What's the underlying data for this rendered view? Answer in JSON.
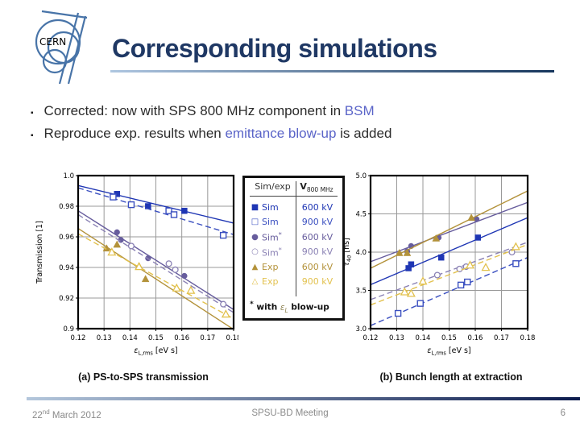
{
  "colors": {
    "accent": "#5a64c8",
    "title": "#1f3864"
  },
  "slide": {
    "title": "Corresponding simulations",
    "logo_text": "CERN",
    "bullet_glyph": "▪",
    "bullets": [
      {
        "segments": [
          {
            "t": "Corrected: now with SPS 800 MHz component in "
          },
          {
            "t": "BSM",
            "accent": true
          }
        ]
      },
      {
        "segments": [
          {
            "t": "Reproduce exp. results when "
          },
          {
            "t": "emittance blow-up",
            "accent": true
          },
          {
            "t": " is added"
          }
        ]
      }
    ],
    "captions": {
      "left": "(a) PS-to-SPS transmission",
      "right": "(b) Bunch length at extraction"
    },
    "footer": {
      "date_day": "22",
      "date_ord": "nd",
      "date_rest": " March 2012",
      "center": "SPSU-BD Meeting",
      "page": "6"
    }
  },
  "legend": {
    "header_left": "Sim/exp",
    "header_right_main": "V",
    "header_right_sub": "800 MHz",
    "rows": [
      {
        "glyph": "■",
        "label": "Sim",
        "star": false,
        "value": "600 kV",
        "color": "#1f36b4"
      },
      {
        "glyph": "□",
        "label": "Sim",
        "star": false,
        "value": "900 kV",
        "color": "#3a4fc0"
      },
      {
        "glyph": "●",
        "label": "Sim",
        "star": true,
        "value": "600 kV",
        "color": "#675d9d"
      },
      {
        "glyph": "○",
        "label": "Sim",
        "star": true,
        "value": "900 kV",
        "color": "#8a81b4"
      },
      {
        "glyph": "▲",
        "label": "Exp",
        "star": false,
        "value": "600 kV",
        "color": "#b3923a"
      },
      {
        "glyph": "△",
        "label": "Exp",
        "star": false,
        "value": "900 kV",
        "color": "#e2c14d"
      }
    ],
    "footnote": {
      "star": "*",
      "pre": " with ",
      "eps": "ε",
      "eps_sub": "L",
      "post": " blow-up"
    }
  },
  "chart_data": [
    {
      "type": "scatter",
      "title": "PS-to-SPS transmission",
      "xlabel_parts": [
        {
          "t": "ε",
          "i": true
        },
        {
          "t": "L,rms",
          "sub": true
        },
        {
          "t": " [eV s]"
        }
      ],
      "ylabel_parts": [
        {
          "t": "Transmission [1]"
        }
      ],
      "xlim": [
        0.12,
        0.18
      ],
      "ylim": [
        0.9,
        1.0
      ],
      "xticks": [
        0.12,
        0.13,
        0.14,
        0.15,
        0.16,
        0.17,
        0.18
      ],
      "xtick_labels": [
        "0.12",
        "0.13",
        "0.14",
        "0.15",
        "0.16",
        "0.17",
        "0.18"
      ],
      "yticks": [
        0.9,
        0.92,
        0.94,
        0.96,
        0.98,
        1.0
      ],
      "ytick_labels": [
        "0.9",
        "0.92",
        "0.94",
        "0.96",
        "0.98",
        "1.0"
      ],
      "grid": true,
      "series": [
        {
          "name": "Sim 600 kV",
          "marker": "square",
          "filled": true,
          "color": "#1f36b4",
          "line": "solid",
          "trend": [
            [
              0.12,
              0.9935
            ],
            [
              0.18,
              0.969
            ]
          ],
          "points": [
            [
              0.135,
              0.988
            ],
            [
              0.147,
              0.98
            ],
            [
              0.161,
              0.977
            ]
          ]
        },
        {
          "name": "Sim 900 kV",
          "marker": "square",
          "filled": false,
          "color": "#3a4fc0",
          "line": "dashed",
          "trend": [
            [
              0.12,
              0.992
            ],
            [
              0.18,
              0.9615
            ]
          ],
          "points": [
            [
              0.1335,
              0.986
            ],
            [
              0.1405,
              0.981
            ],
            [
              0.155,
              0.977
            ],
            [
              0.157,
              0.9745
            ],
            [
              0.176,
              0.961
            ]
          ]
        },
        {
          "name": "Sim* 600 kV",
          "marker": "circle",
          "filled": true,
          "color": "#675d9d",
          "line": "solid",
          "trend": [
            [
              0.12,
              0.977
            ],
            [
              0.18,
              0.9125
            ]
          ],
          "points": [
            [
              0.135,
              0.963
            ],
            [
              0.1365,
              0.958
            ],
            [
              0.147,
              0.946
            ],
            [
              0.161,
              0.9345
            ]
          ]
        },
        {
          "name": "Sim* 900 kV",
          "marker": "circle",
          "filled": false,
          "color": "#8a81b4",
          "line": "dashed",
          "trend": [
            [
              0.12,
              0.9745
            ],
            [
              0.18,
              0.9105
            ]
          ],
          "points": [
            [
              0.1405,
              0.954
            ],
            [
              0.155,
              0.9425
            ],
            [
              0.1575,
              0.9385
            ],
            [
              0.176,
              0.916
            ]
          ]
        },
        {
          "name": "Exp 600 kV",
          "marker": "triangle",
          "filled": true,
          "color": "#b3923a",
          "line": "solid",
          "trend": [
            [
              0.12,
              0.9655
            ],
            [
              0.18,
              0.8995
            ]
          ],
          "points": [
            [
              0.131,
              0.9525
            ],
            [
              0.135,
              0.955
            ],
            [
              0.1435,
              0.941
            ],
            [
              0.146,
              0.9325
            ]
          ]
        },
        {
          "name": "Exp 900 kV",
          "marker": "triangle",
          "filled": false,
          "color": "#e2c14d",
          "line": "dashed",
          "trend": [
            [
              0.12,
              0.962
            ],
            [
              0.18,
              0.9065
            ]
          ],
          "points": [
            [
              0.133,
              0.95
            ],
            [
              0.1435,
              0.9405
            ],
            [
              0.158,
              0.9265
            ],
            [
              0.1635,
              0.925
            ],
            [
              0.177,
              0.9095
            ]
          ]
        }
      ]
    },
    {
      "type": "scatter",
      "title": "Bunch length at extraction",
      "xlabel_parts": [
        {
          "t": "ε",
          "i": true
        },
        {
          "t": "L,rms",
          "sub": true
        },
        {
          "t": " [eV s]"
        }
      ],
      "ylabel_parts": [
        {
          "t": "τ",
          "i": true
        },
        {
          "t": "4σ",
          "sub": true
        },
        {
          "t": " [ns]"
        }
      ],
      "xlim": [
        0.12,
        0.18
      ],
      "ylim": [
        3.0,
        5.0
      ],
      "xticks": [
        0.12,
        0.13,
        0.14,
        0.15,
        0.16,
        0.17,
        0.18
      ],
      "xtick_labels": [
        "0.12",
        "0.13",
        "0.14",
        "0.15",
        "0.16",
        "0.17",
        "0.18"
      ],
      "yticks": [
        3.0,
        3.5,
        4.0,
        4.5,
        5.0
      ],
      "ytick_labels": [
        "3.0",
        "3.5",
        "4.0",
        "4.5",
        "5.0"
      ],
      "grid": true,
      "series": [
        {
          "name": "Sim 600 kV",
          "marker": "square",
          "filled": true,
          "color": "#1f36b4",
          "line": "solid",
          "trend": [
            [
              0.12,
              3.575
            ],
            [
              0.18,
              4.45
            ]
          ],
          "points": [
            [
              0.1345,
              3.79
            ],
            [
              0.1355,
              3.84
            ],
            [
              0.147,
              3.93
            ],
            [
              0.161,
              4.19
            ]
          ]
        },
        {
          "name": "Sim 900 kV",
          "marker": "square",
          "filled": false,
          "color": "#3a4fc0",
          "line": "dashed",
          "trend": [
            [
              0.12,
              3.04
            ],
            [
              0.18,
              3.93
            ]
          ],
          "points": [
            [
              0.1305,
              3.2
            ],
            [
              0.139,
              3.33
            ],
            [
              0.1545,
              3.57
            ],
            [
              0.157,
              3.61
            ],
            [
              0.1755,
              3.85
            ]
          ]
        },
        {
          "name": "Sim* 600 kV",
          "marker": "circle",
          "filled": true,
          "color": "#675d9d",
          "line": "solid",
          "trend": [
            [
              0.12,
              3.875
            ],
            [
              0.18,
              4.65
            ]
          ],
          "points": [
            [
              0.134,
              4.01
            ],
            [
              0.1355,
              4.08
            ],
            [
              0.146,
              4.19
            ],
            [
              0.1605,
              4.43
            ]
          ]
        },
        {
          "name": "Sim* 900 kV",
          "marker": "circle",
          "filled": false,
          "color": "#8a81b4",
          "line": "dashed",
          "trend": [
            [
              0.12,
              3.38
            ],
            [
              0.18,
              4.13
            ]
          ],
          "points": [
            [
              0.1455,
              3.7
            ],
            [
              0.154,
              3.78
            ],
            [
              0.1565,
              3.81
            ],
            [
              0.174,
              4.0
            ]
          ]
        },
        {
          "name": "Exp 600 kV",
          "marker": "triangle",
          "filled": true,
          "color": "#b3923a",
          "line": "solid",
          "trend": [
            [
              0.12,
              3.79
            ],
            [
              0.18,
              4.8
            ]
          ],
          "points": [
            [
              0.131,
              3.99
            ],
            [
              0.134,
              3.99
            ],
            [
              0.145,
              4.18
            ],
            [
              0.1585,
              4.45
            ]
          ]
        },
        {
          "name": "Exp 900 kV",
          "marker": "triangle",
          "filled": false,
          "color": "#e2c14d",
          "line": "dashed",
          "trend": [
            [
              0.12,
              3.31
            ],
            [
              0.18,
              4.1
            ]
          ],
          "points": [
            [
              0.133,
              3.48
            ],
            [
              0.1355,
              3.46
            ],
            [
              0.14,
              3.62
            ],
            [
              0.158,
              3.83
            ],
            [
              0.164,
              3.8
            ],
            [
              0.1755,
              4.07
            ]
          ]
        }
      ]
    }
  ]
}
